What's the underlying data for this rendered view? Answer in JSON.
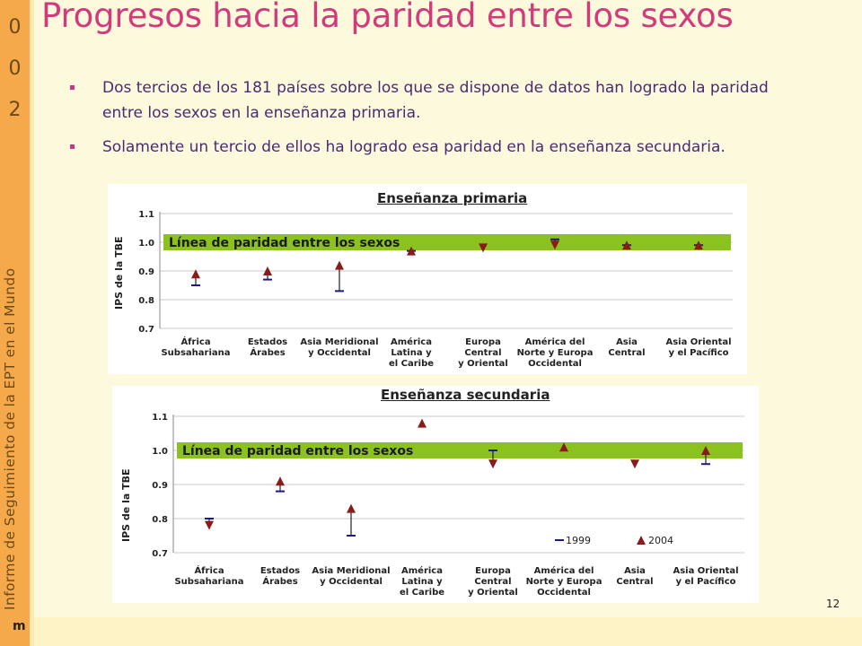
{
  "sidebar": {
    "year_digits": [
      "0",
      "0",
      "2"
    ],
    "vertical_text": "Informe de Seguimiento de la EPT en el Mundo"
  },
  "title": "Progresos hacia la paridad entre los sexos",
  "bullets": [
    "Dos tercios de los 181 países sobre los que se dispone de datos han logrado la paridad entre los sexos en la enseñanza primaria.",
    "Solamente un tercio de ellos ha logrado esa paridad en la enseñanza secundaria."
  ],
  "colors": {
    "parity_band": "#8cc21e",
    "marker_2004": "#8b1a1a",
    "marker_1999": "#1a1a8c",
    "title": "#d23a7c",
    "bullet_text": "#4b2a72",
    "sidebar": "#f6a94a"
  },
  "page_number": "12",
  "footer_mark": "m",
  "chart_data": [
    {
      "type": "scatter",
      "title": "Enseñanza primaria",
      "ylabel": "IPS de la TBE",
      "ylim": [
        0.7,
        1.1
      ],
      "yticks": [
        "0.7",
        "0.8",
        "0.9",
        "1.0",
        "1.1"
      ],
      "parity_label": "Línea de paridad entre los sexos",
      "categories": [
        [
          "África",
          "Subsahariana"
        ],
        [
          "Estados",
          "Árabes"
        ],
        [
          "Asia Meridional",
          "y Occidental"
        ],
        [
          "América",
          "Latina y",
          "el Caribe"
        ],
        [
          "Europa",
          "Central",
          "y Oriental"
        ],
        [
          "América del",
          "Norte y Europa",
          "Occidental"
        ],
        [
          "Asia",
          "Central"
        ],
        [
          "Asia Oriental",
          "y el Pacífico"
        ]
      ],
      "series": [
        {
          "name": "1999",
          "values": [
            0.85,
            0.87,
            0.83,
            0.97,
            null,
            1.01,
            0.99,
            0.99
          ]
        },
        {
          "name": "2004",
          "values": [
            0.89,
            0.9,
            0.92,
            0.97,
            0.98,
            0.99,
            0.99,
            0.99
          ]
        }
      ]
    },
    {
      "type": "scatter",
      "title": "Enseñanza secundaria",
      "ylabel": "IPS de la TBE",
      "ylim": [
        0.7,
        1.1
      ],
      "yticks": [
        "0.7",
        "0.8",
        "0.9",
        "1.0",
        "1.1"
      ],
      "parity_label": "Línea de paridad entre los sexos",
      "categories": [
        [
          "África",
          "Subsahariana"
        ],
        [
          "Estados",
          "Árabes"
        ],
        [
          "Asia Meridional",
          "y Occidental"
        ],
        [
          "América",
          "Latina y",
          "el Caribe"
        ],
        [
          "Europa",
          "Central",
          "y Oriental"
        ],
        [
          "América del",
          "Norte y Europa",
          "Occidental"
        ],
        [
          "Asia",
          "Central"
        ],
        [
          "Asia Oriental",
          "y el Pacífico"
        ]
      ],
      "series": [
        {
          "name": "1999",
          "values": [
            0.8,
            0.88,
            0.75,
            null,
            1.0,
            null,
            null,
            0.96
          ]
        },
        {
          "name": "2004",
          "values": [
            0.78,
            0.91,
            0.83,
            1.08,
            0.96,
            1.01,
            0.96,
            1.0
          ]
        }
      ],
      "legend": [
        "1999",
        "2004"
      ],
      "legend_position": "bottom-right"
    }
  ]
}
